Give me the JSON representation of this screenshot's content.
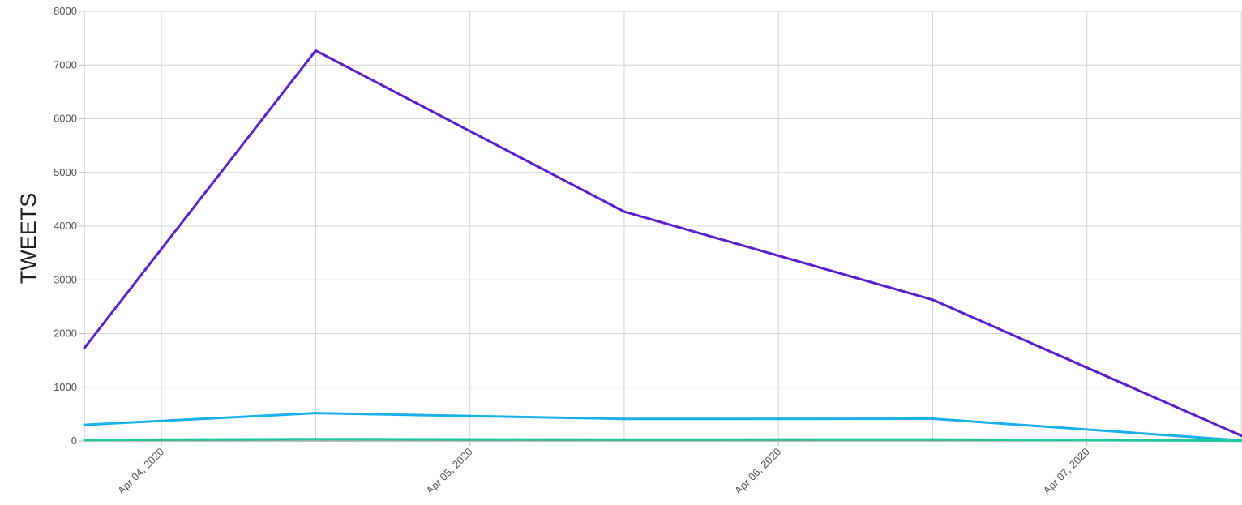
{
  "chart_data": {
    "type": "line",
    "ylabel": "TWEETS",
    "xlabel": "",
    "ylim": [
      0,
      8000
    ],
    "yticks": [
      "0",
      "1000",
      "2000",
      "3000",
      "4000",
      "5000",
      "6000",
      "7000",
      "8000"
    ],
    "x": [
      "Apr 03, 2020 18:00",
      "Apr 04, 2020 00:00",
      "Apr 04, 2020 12:00",
      "Apr 05, 2020 00:00",
      "Apr 05, 2020 12:00",
      "Apr 06, 2020 00:00",
      "Apr 06, 2020 12:00",
      "Apr 07, 2020 00:00",
      "Apr 07, 2020 12:00"
    ],
    "xlim": [
      "Apr 03, 2020 18:00",
      "Apr 07, 2020 12:00"
    ],
    "xticks": [
      {
        "at": "Apr 04, 2020 00:00",
        "label": "Apr 04, 2020"
      },
      {
        "at": "Apr 05, 2020 00:00",
        "label": "Apr 05, 2020"
      },
      {
        "at": "Apr 06, 2020 00:00",
        "label": "Apr 06, 2020"
      },
      {
        "at": "Apr 07, 2020 00:00",
        "label": "Apr 07, 2020"
      }
    ],
    "grid": true,
    "legend": "none",
    "series": [
      {
        "color": "#5b21d1",
        "values": [
          1730,
          null,
          7270,
          null,
          4270,
          null,
          2630,
          null,
          100
        ],
        "points_at": [
          "Apr 03, 2020 18:00",
          "Apr 04, 2020 12:00",
          "Apr 05, 2020 12:00",
          "Apr 06, 2020 12:00",
          "Apr 07, 2020 12:00"
        ]
      },
      {
        "color": "#1ab0ea",
        "values": [
          300,
          null,
          520,
          null,
          410,
          null,
          415,
          null,
          10
        ],
        "points_at": [
          "Apr 03, 2020 18:00",
          "Apr 04, 2020 12:00",
          "Apr 05, 2020 12:00",
          "Apr 06, 2020 12:00",
          "Apr 07, 2020 12:00"
        ]
      },
      {
        "color": "#22c7a0",
        "values": [
          20,
          null,
          35,
          null,
          25,
          null,
          28,
          null,
          5
        ],
        "points_at": [
          "Apr 03, 2020 18:00",
          "Apr 04, 2020 12:00",
          "Apr 05, 2020 12:00",
          "Apr 06, 2020 12:00",
          "Apr 07, 2020 12:00"
        ]
      }
    ]
  }
}
